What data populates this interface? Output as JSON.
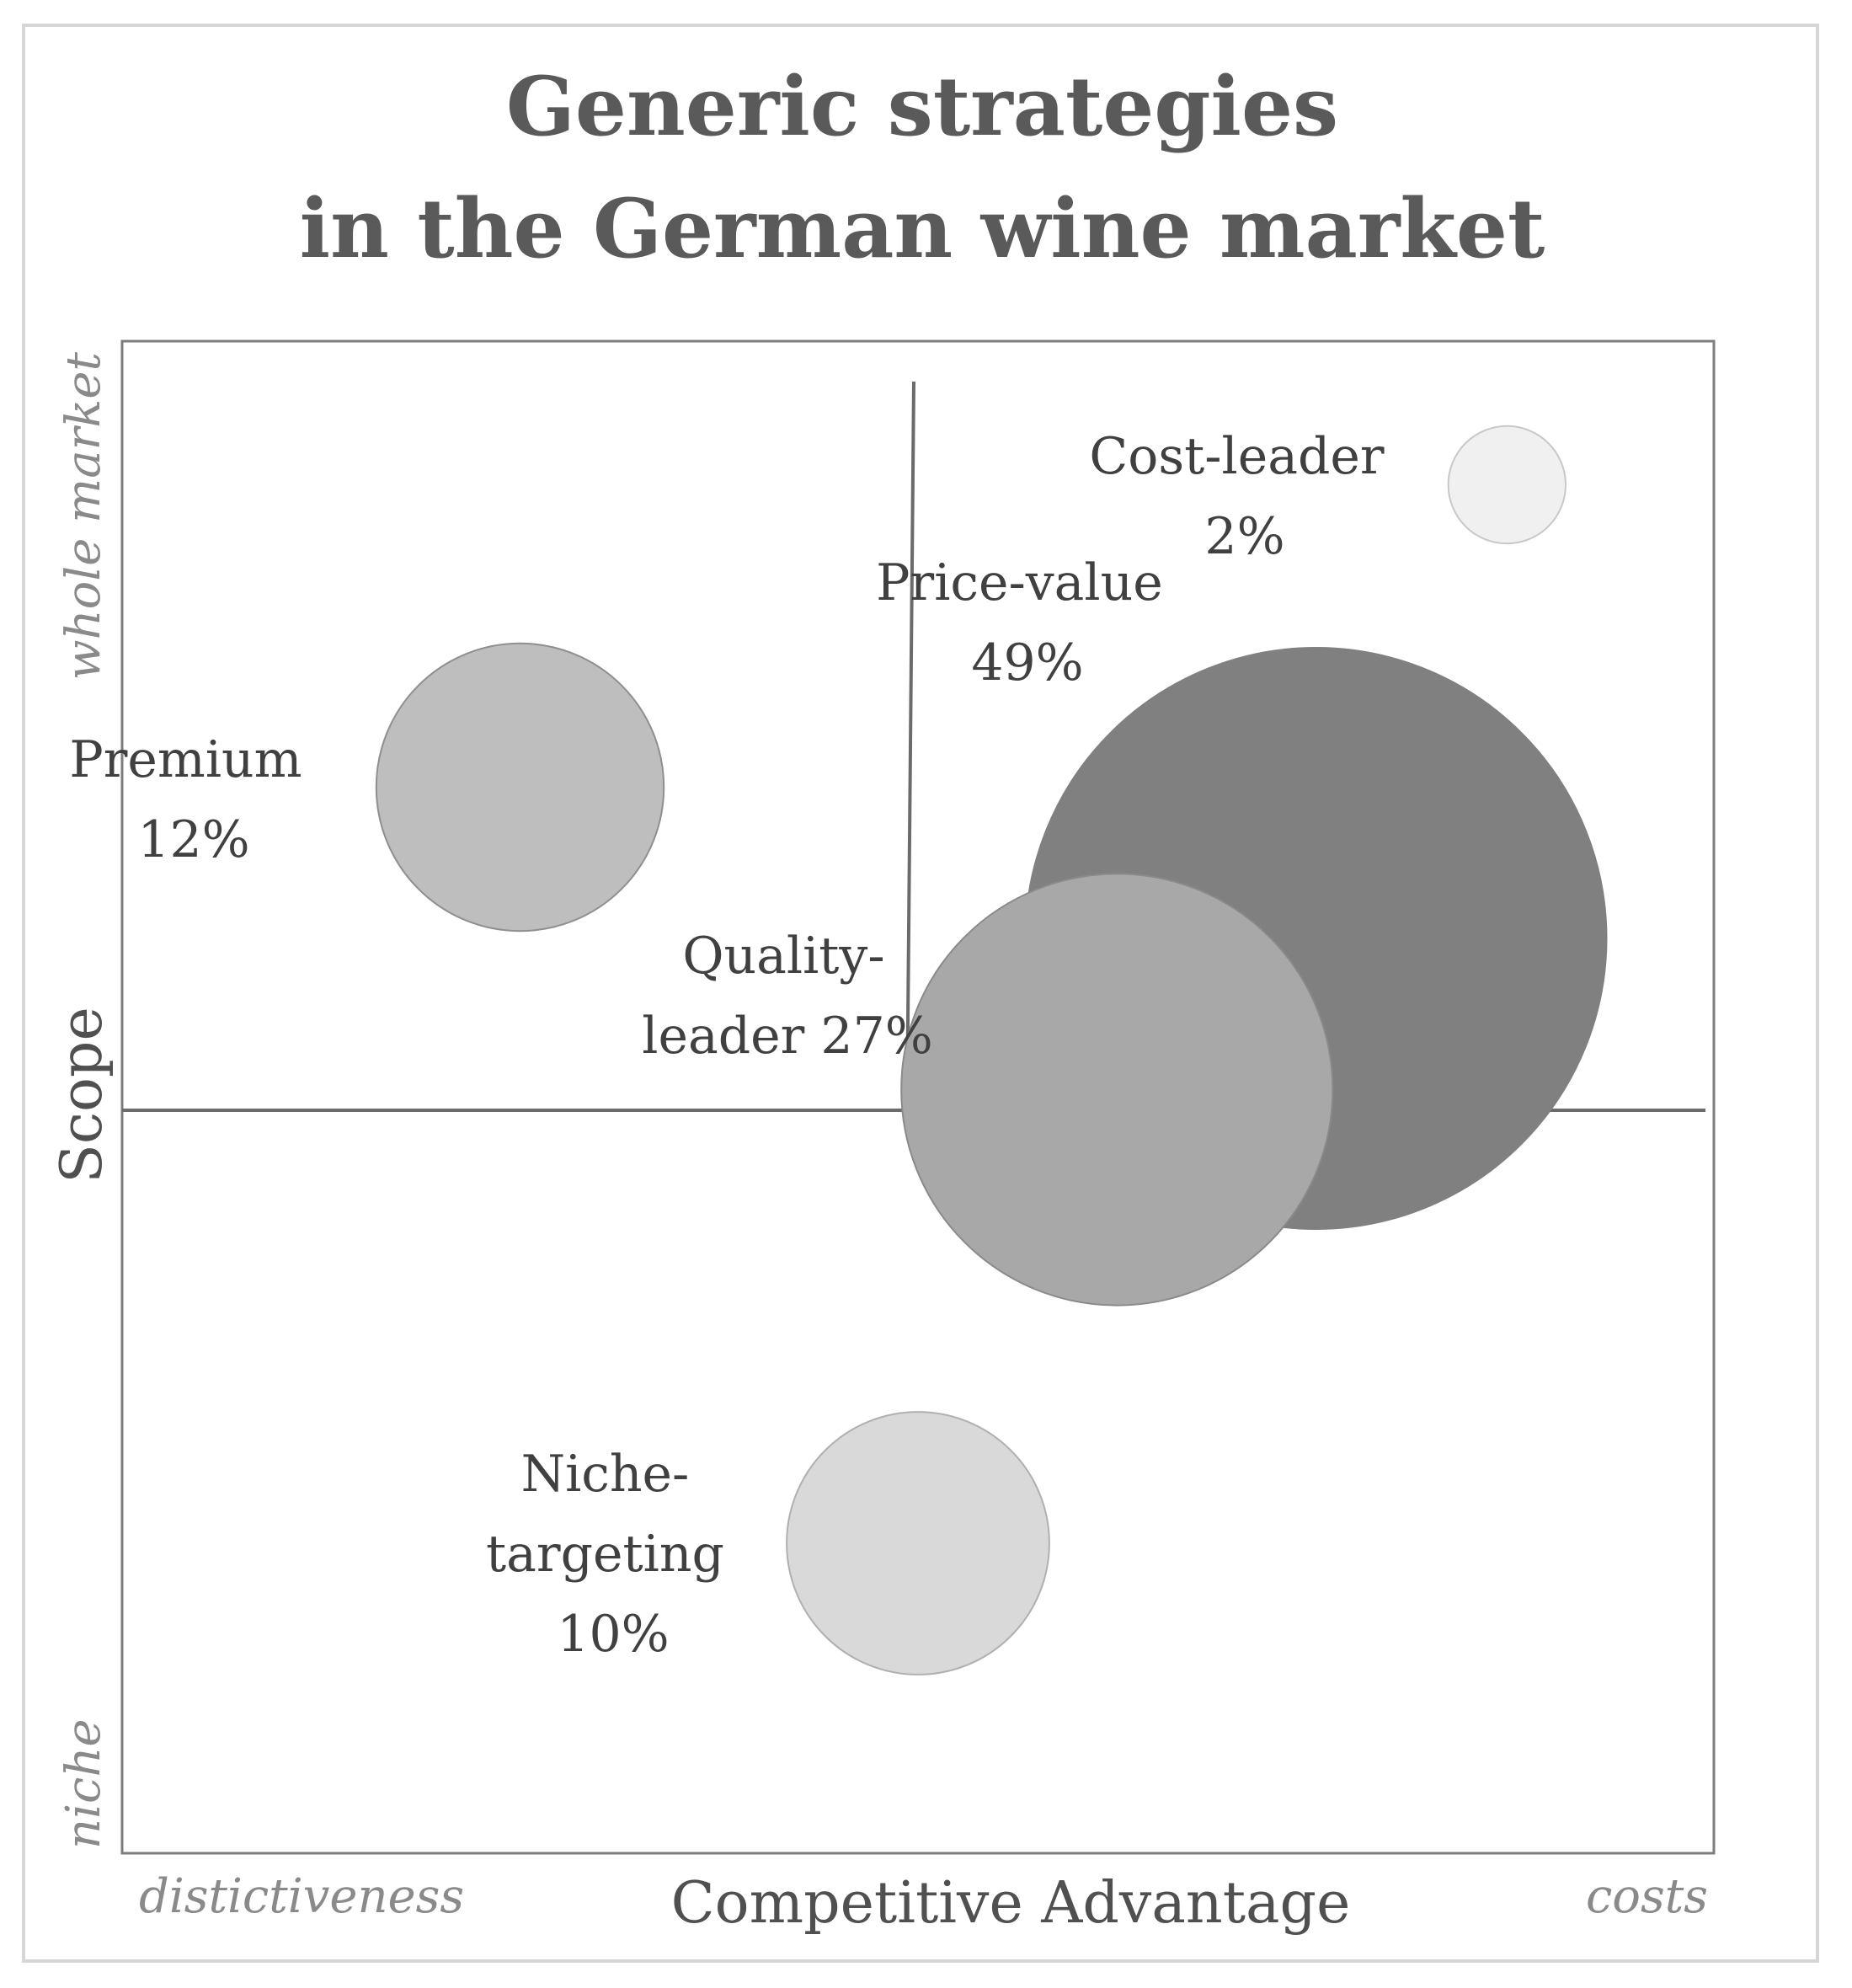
{
  "chart_data": {
    "type": "bubble",
    "title": [
      "Generic strategies",
      "in the German wine market"
    ],
    "xlabel": "Competitive Advantage",
    "ylabel": "Scope",
    "x_axis_ends": {
      "left": "distictiveness",
      "right": "costs"
    },
    "y_axis_ends": {
      "top": "whole market",
      "bottom": "niche"
    },
    "xlim": [
      0,
      100
    ],
    "ylim": [
      0,
      100
    ],
    "grid": false,
    "legend": "none",
    "bubbles": [
      {
        "name": "Cost-leader",
        "value": 2,
        "label_lines": [
          "Cost-leader",
          "2%"
        ],
        "x": 87,
        "y": 90.5,
        "color": "#f0f0f0",
        "stroke": "#c8c8c8"
      },
      {
        "name": "Premium",
        "value": 12,
        "label_lines": [
          "Premium",
          "12%"
        ],
        "x": 25,
        "y": 70.5,
        "color": "#bebebe",
        "stroke": "#8f8f8f"
      },
      {
        "name": "Price-value",
        "value": 49,
        "label_lines": [
          "Price-value",
          "49%"
        ],
        "x": 75,
        "y": 60.5,
        "color": "#808080",
        "stroke": "#808080"
      },
      {
        "name": "Quality-leader",
        "value": 27,
        "label_lines": [
          "Quality-",
          "leader 27%"
        ],
        "x": 62.5,
        "y": 50.5,
        "color": "#a8a8a8",
        "stroke": "#8a8a8a"
      },
      {
        "name": "Niche-targeting",
        "value": 10,
        "label_lines": [
          "Niche-",
          "targeting",
          "10%"
        ],
        "x": 50,
        "y": 20.5,
        "color": "#d9d9d9",
        "stroke": "#b0b0b0"
      }
    ]
  }
}
